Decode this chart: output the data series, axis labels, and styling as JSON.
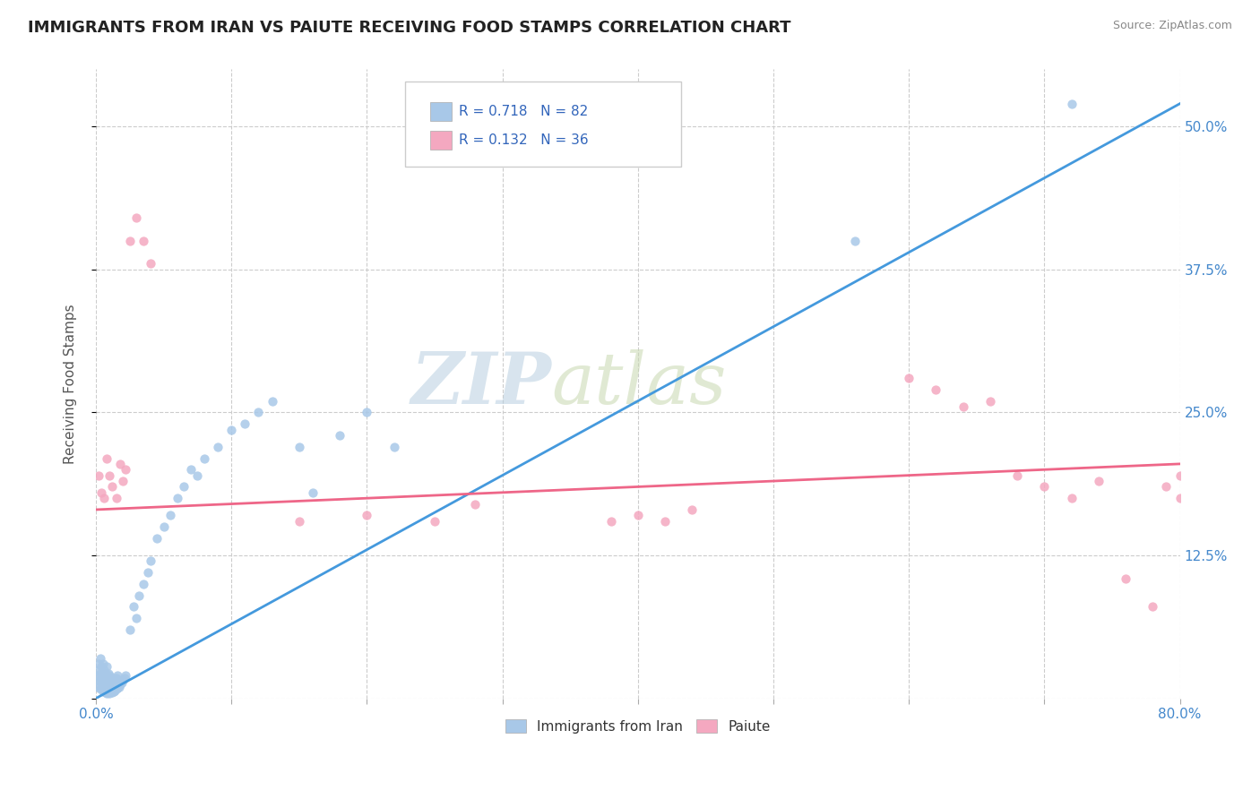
{
  "title": "IMMIGRANTS FROM IRAN VS PAIUTE RECEIVING FOOD STAMPS CORRELATION CHART",
  "source": "Source: ZipAtlas.com",
  "ylabel": "Receiving Food Stamps",
  "xlim": [
    0.0,
    0.8
  ],
  "ylim": [
    0.0,
    0.55
  ],
  "xticks": [
    0.0,
    0.1,
    0.2,
    0.3,
    0.4,
    0.5,
    0.6,
    0.7,
    0.8
  ],
  "yticks": [
    0.0,
    0.125,
    0.25,
    0.375,
    0.5
  ],
  "iran_R": 0.718,
  "iran_N": 82,
  "paiute_R": 0.132,
  "paiute_N": 36,
  "iran_color": "#a8c8e8",
  "iran_line_color": "#4499dd",
  "paiute_color": "#f4a8c0",
  "paiute_line_color": "#ee6688",
  "background_color": "#ffffff",
  "grid_color": "#cccccc",
  "legend_iran_label": "Immigrants from Iran",
  "legend_paiute_label": "Paiute",
  "iran_line_x0": 0.0,
  "iran_line_y0": 0.0,
  "iran_line_x1": 0.8,
  "iran_line_y1": 0.52,
  "paiute_line_x0": 0.0,
  "paiute_line_y0": 0.165,
  "paiute_line_x1": 0.8,
  "paiute_line_y1": 0.205
}
